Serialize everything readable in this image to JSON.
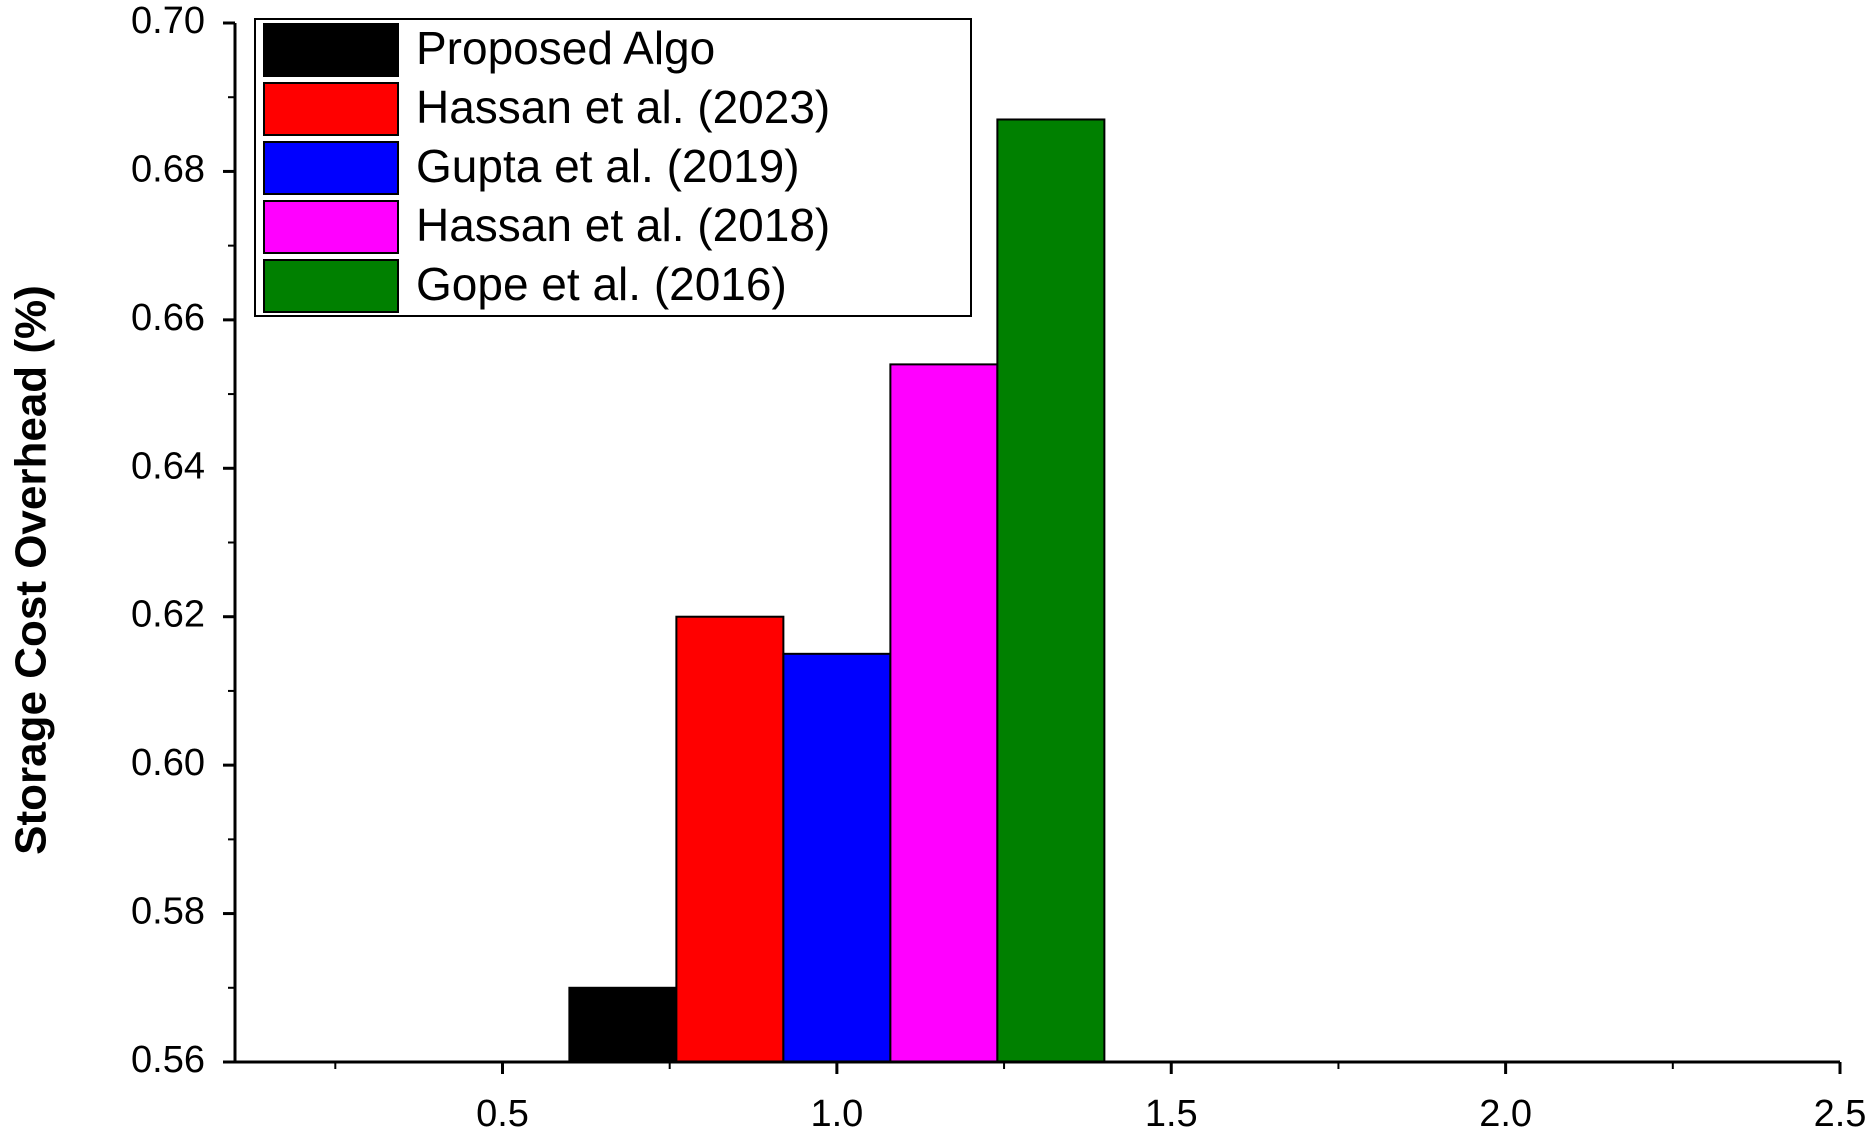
{
  "chart_data": {
    "type": "bar",
    "y_label": "Storage Cost Overhead (%)",
    "x": [
      1
    ],
    "series": [
      {
        "name": "Proposed Algo",
        "color": "#000000",
        "values": [
          0.57
        ]
      },
      {
        "name": "Hassan et al. (2023)",
        "color": "#ff0000",
        "values": [
          0.62
        ]
      },
      {
        "name": "Gupta et al. (2019)",
        "color": "#0000ff",
        "values": [
          0.615
        ]
      },
      {
        "name": "Hassan et al. (2018)",
        "color": "#ff00ff",
        "values": [
          0.654
        ]
      },
      {
        "name": "Gope et al.  (2016)",
        "color": "#008000",
        "values": [
          0.687
        ]
      }
    ],
    "xlim": [
      0.1,
      2.5
    ],
    "xticks": [
      0.5,
      {
        "value": 1,
        "label": "1.0"
      },
      1.5,
      {
        "value": 2,
        "label": "2.0"
      },
      2.5
    ],
    "xminorticks": [
      0.25,
      0.75,
      1.25,
      1.75,
      2.25
    ],
    "ylim": [
      0.56,
      0.7
    ],
    "yticks": [
      0.56,
      0.58,
      {
        "value": 0.6,
        "label": "0.60"
      },
      0.62,
      0.64,
      0.66,
      0.68,
      {
        "value": 0.7,
        "label": "0.70"
      }
    ],
    "yminorticks": [
      0.57,
      0.59,
      0.61,
      0.63,
      0.65,
      0.67,
      0.69
    ],
    "legend": "upper left",
    "grid": false
  }
}
